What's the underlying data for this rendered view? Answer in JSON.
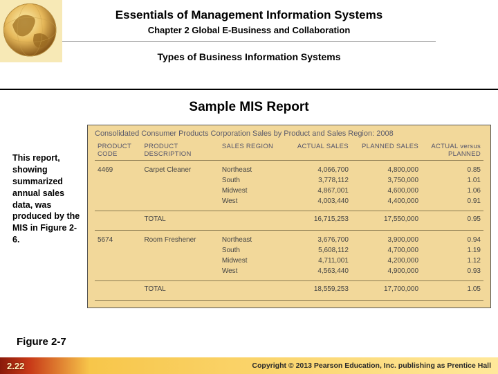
{
  "header": {
    "book_title": "Essentials of Management Information Systems",
    "chapter_line": "Chapter 2 Global E-Business and Collaboration",
    "section_title": "Types of Business Information Systems"
  },
  "slide_title": "Sample MIS Report",
  "caption": "This report, showing summarized annual sales data, was produced by the MIS in Figure 2-6.",
  "report": {
    "title": "Consolidated Consumer Products Corporation Sales by Product and Sales Region: 2008",
    "columns": [
      "PRODUCT CODE",
      "PRODUCT DESCRIPTION",
      "SALES REGION",
      "ACTUAL SALES",
      "PLANNED SALES",
      "ACTUAL versus PLANNED"
    ],
    "groups": [
      {
        "code": "4469",
        "description": "Carpet Cleaner",
        "rows": [
          {
            "region": "Northeast",
            "actual": "4,066,700",
            "planned": "4,800,000",
            "ratio": "0.85"
          },
          {
            "region": "South",
            "actual": "3,778,112",
            "planned": "3,750,000",
            "ratio": "1.01"
          },
          {
            "region": "Midwest",
            "actual": "4,867,001",
            "planned": "4,600,000",
            "ratio": "1.06"
          },
          {
            "region": "West",
            "actual": "4,003,440",
            "planned": "4,400,000",
            "ratio": "0.91"
          }
        ],
        "total": {
          "label": "TOTAL",
          "actual": "16,715,253",
          "planned": "17,550,000",
          "ratio": "0.95"
        }
      },
      {
        "code": "5674",
        "description": "Room Freshener",
        "rows": [
          {
            "region": "Northeast",
            "actual": "3,676,700",
            "planned": "3,900,000",
            "ratio": "0.94"
          },
          {
            "region": "South",
            "actual": "5,608,112",
            "planned": "4,700,000",
            "ratio": "1.19"
          },
          {
            "region": "Midwest",
            "actual": "4,711,001",
            "planned": "4,200,000",
            "ratio": "1.12"
          },
          {
            "region": "West",
            "actual": "4,563,440",
            "planned": "4,900,000",
            "ratio": "0.93"
          }
        ],
        "total": {
          "label": "TOTAL",
          "actual": "18,559,253",
          "planned": "17,700,000",
          "ratio": "1.05"
        }
      }
    ]
  },
  "figure_label": "Figure 2-7",
  "footer": {
    "page": "2.22",
    "copyright": "Copyright © 2013 Pearson Education, Inc. publishing as Prentice Hall"
  },
  "colors": {
    "report_bg": "#f2d89a",
    "footer_gradient_from": "#8a1a0a",
    "footer_gradient_to": "#ffe89a"
  }
}
